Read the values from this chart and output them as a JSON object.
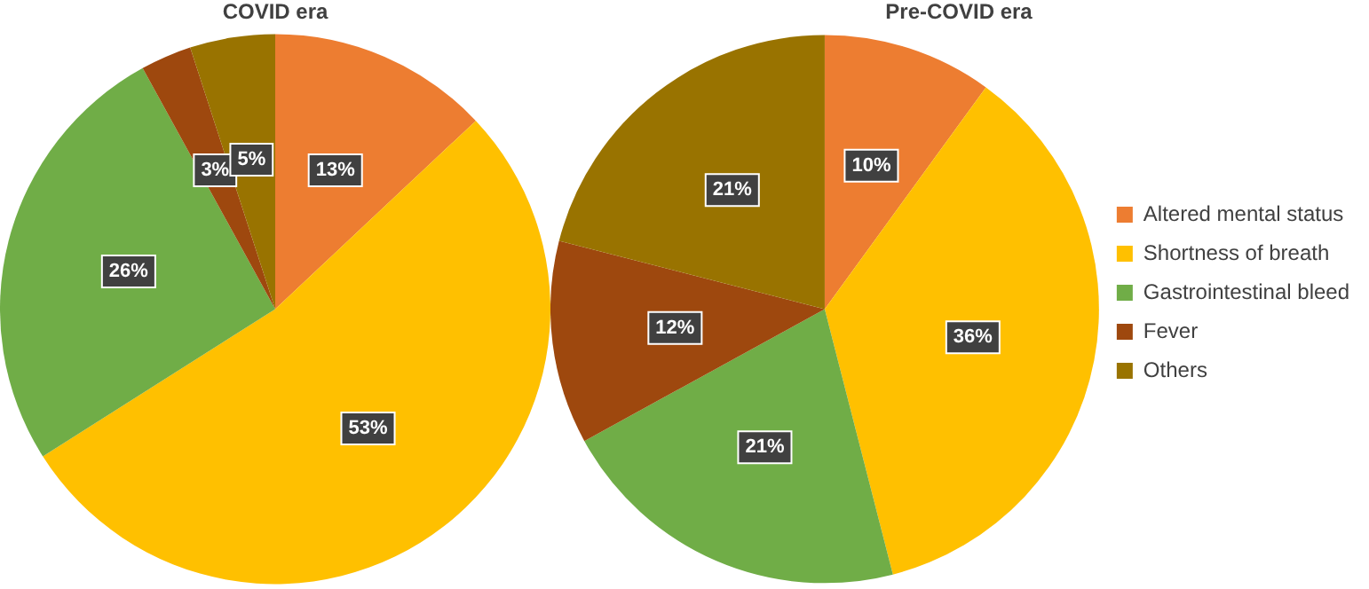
{
  "chart_data": [
    {
      "type": "pie",
      "title": "COVID era",
      "categories": [
        null,
        null,
        null,
        null,
        null
      ],
      "values": [
        13,
        53,
        26,
        3,
        5
      ],
      "colors": [
        "#ed7d31",
        "#ffc000",
        "#70ad47",
        "#9e480e",
        "#997300"
      ],
      "value_labels": [
        "13%",
        "53%",
        "26%",
        "3%",
        "5%"
      ],
      "legend": false
    },
    {
      "type": "pie",
      "title": "Pre-COVID era",
      "categories": [
        "Altered mental status",
        "Shortness of breath",
        "Gastrointestinal bleed",
        "Fever",
        "Others"
      ],
      "values": [
        10,
        36,
        21,
        12,
        21
      ],
      "colors": [
        "#ed7d31",
        "#ffc000",
        "#70ad47",
        "#9e480e",
        "#997300"
      ],
      "value_labels": [
        "10%",
        "36%",
        "21%",
        "12%",
        "21%"
      ],
      "legend": "right"
    }
  ]
}
